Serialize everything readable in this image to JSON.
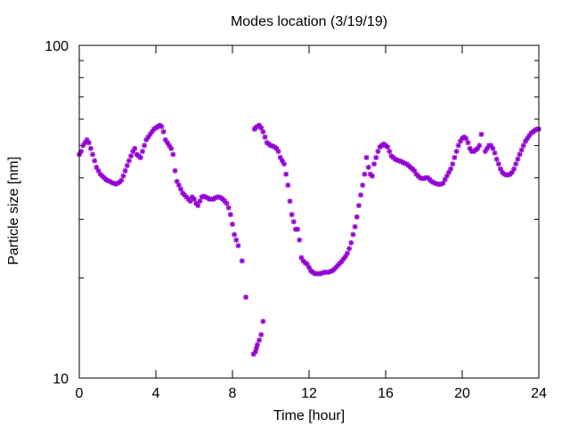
{
  "chart_data": {
    "type": "scatter",
    "title": "Modes location (3/19/19)",
    "xlabel": "Time [hour]",
    "ylabel": "Particle size [nm]",
    "xlim": [
      0,
      24
    ],
    "ylim": [
      10,
      100
    ],
    "y_scale": "log",
    "x_ticks": [
      0,
      4,
      8,
      12,
      16,
      20,
      24
    ],
    "x_tick_labels": [
      "0",
      "4",
      "8",
      "12",
      "16",
      "20",
      "24"
    ],
    "y_ticks": [
      10,
      100
    ],
    "y_tick_labels": [
      "10",
      "100"
    ],
    "grid": false,
    "legend": "none",
    "marker": "asterisk",
    "colors": {
      "series": "#9400d3",
      "axis": "#000000",
      "background": "#ffffff"
    },
    "series": [
      {
        "points": [
          [
            0.0,
            47
          ],
          [
            0.1,
            48
          ],
          [
            0.2,
            50
          ],
          [
            0.3,
            51
          ],
          [
            0.4,
            52
          ],
          [
            0.5,
            51
          ],
          [
            0.6,
            49
          ],
          [
            0.7,
            47
          ],
          [
            0.8,
            45
          ],
          [
            0.9,
            43
          ],
          [
            1.0,
            42
          ],
          [
            1.1,
            41
          ],
          [
            1.2,
            40.5
          ],
          [
            1.3,
            40
          ],
          [
            1.4,
            39.5
          ],
          [
            1.5,
            39.2
          ],
          [
            1.6,
            39
          ],
          [
            1.7,
            38.7
          ],
          [
            1.8,
            38.5
          ],
          [
            1.9,
            38.3
          ],
          [
            2.0,
            38.5
          ],
          [
            2.1,
            38.8
          ],
          [
            2.2,
            39.3
          ],
          [
            2.3,
            40.5
          ],
          [
            2.4,
            42
          ],
          [
            2.5,
            43.5
          ],
          [
            2.6,
            45
          ],
          [
            2.7,
            46.5
          ],
          [
            2.8,
            48
          ],
          [
            2.9,
            49
          ],
          [
            3.0,
            47
          ],
          [
            3.1,
            46.5
          ],
          [
            3.2,
            46
          ],
          [
            3.3,
            48
          ],
          [
            3.4,
            50
          ],
          [
            3.5,
            52
          ],
          [
            3.6,
            53
          ],
          [
            3.7,
            54
          ],
          [
            3.8,
            55
          ],
          [
            3.9,
            56
          ],
          [
            4.0,
            56.5
          ],
          [
            4.1,
            57
          ],
          [
            4.2,
            57.5
          ],
          [
            4.3,
            57
          ],
          [
            4.4,
            55
          ],
          [
            4.5,
            52
          ],
          [
            4.6,
            51
          ],
          [
            4.7,
            50
          ],
          [
            4.8,
            49
          ],
          [
            4.9,
            47
          ],
          [
            5.0,
            42
          ],
          [
            5.1,
            39
          ],
          [
            5.2,
            38
          ],
          [
            5.3,
            37
          ],
          [
            5.4,
            36
          ],
          [
            5.5,
            35.5
          ],
          [
            5.6,
            35
          ],
          [
            5.7,
            34.5
          ],
          [
            5.8,
            34
          ],
          [
            5.9,
            35
          ],
          [
            6.0,
            34.5
          ],
          [
            6.1,
            33.5
          ],
          [
            6.2,
            33
          ],
          [
            6.3,
            34
          ],
          [
            6.4,
            35
          ],
          [
            6.5,
            35.2
          ],
          [
            6.6,
            35
          ],
          [
            6.7,
            34.8
          ],
          [
            6.8,
            34.5
          ],
          [
            6.9,
            34.5
          ],
          [
            7.0,
            34.5
          ],
          [
            7.1,
            34.8
          ],
          [
            7.2,
            35
          ],
          [
            7.3,
            35
          ],
          [
            7.4,
            34.8
          ],
          [
            7.5,
            34.5
          ],
          [
            7.6,
            34
          ],
          [
            7.7,
            33.5
          ],
          [
            7.8,
            32.5
          ],
          [
            7.9,
            31
          ],
          [
            8.0,
            29
          ],
          [
            8.1,
            27
          ],
          [
            8.2,
            26
          ],
          [
            8.3,
            25
          ],
          [
            8.5,
            22.5
          ],
          [
            8.7,
            17.5
          ],
          [
            9.1,
            11.8
          ],
          [
            9.2,
            12
          ],
          [
            9.25,
            12.3
          ],
          [
            9.3,
            12.6
          ],
          [
            9.4,
            13
          ],
          [
            9.5,
            13.5
          ],
          [
            9.6,
            14.8
          ],
          [
            9.15,
            56
          ],
          [
            9.2,
            56.5
          ],
          [
            9.3,
            57
          ],
          [
            9.4,
            57.5
          ],
          [
            9.5,
            56.5
          ],
          [
            9.6,
            55
          ],
          [
            9.7,
            53
          ],
          [
            9.8,
            51
          ],
          [
            9.9,
            50.5
          ],
          [
            10.0,
            50
          ],
          [
            10.1,
            49.8
          ],
          [
            10.2,
            49.5
          ],
          [
            10.3,
            49
          ],
          [
            10.4,
            48
          ],
          [
            10.5,
            46
          ],
          [
            10.6,
            45
          ],
          [
            10.7,
            44
          ],
          [
            10.8,
            41
          ],
          [
            10.9,
            38
          ],
          [
            11.0,
            34
          ],
          [
            11.1,
            31
          ],
          [
            11.2,
            29.5
          ],
          [
            11.3,
            28
          ],
          [
            11.4,
            28
          ],
          [
            11.5,
            26
          ],
          [
            11.6,
            23
          ],
          [
            11.7,
            22.5
          ],
          [
            11.8,
            22.2
          ],
          [
            11.9,
            22
          ],
          [
            12.0,
            21.5
          ],
          [
            12.1,
            21
          ],
          [
            12.2,
            20.8
          ],
          [
            12.3,
            20.6
          ],
          [
            12.4,
            20.6
          ],
          [
            12.5,
            20.6
          ],
          [
            12.6,
            20.6
          ],
          [
            12.7,
            20.7
          ],
          [
            12.8,
            20.8
          ],
          [
            12.9,
            20.8
          ],
          [
            13.0,
            20.8
          ],
          [
            13.1,
            20.9
          ],
          [
            13.2,
            21
          ],
          [
            13.3,
            21.2
          ],
          [
            13.4,
            21.5
          ],
          [
            13.5,
            21.8
          ],
          [
            13.6,
            22.1
          ],
          [
            13.7,
            22.4
          ],
          [
            13.8,
            22.8
          ],
          [
            13.9,
            23.2
          ],
          [
            14.0,
            23.7
          ],
          [
            14.1,
            24.5
          ],
          [
            14.2,
            25.5
          ],
          [
            14.3,
            27
          ],
          [
            14.4,
            28.5
          ],
          [
            14.5,
            30.5
          ],
          [
            14.6,
            33
          ],
          [
            14.7,
            35.5
          ],
          [
            14.8,
            38
          ],
          [
            14.9,
            41
          ],
          [
            15.0,
            46
          ],
          [
            15.1,
            43
          ],
          [
            15.2,
            41
          ],
          [
            15.3,
            40.5
          ],
          [
            15.4,
            44
          ],
          [
            15.5,
            46
          ],
          [
            15.6,
            48
          ],
          [
            15.7,
            49.5
          ],
          [
            15.8,
            50
          ],
          [
            15.9,
            50.5
          ],
          [
            16.0,
            50
          ],
          [
            16.1,
            49.5
          ],
          [
            16.2,
            48
          ],
          [
            16.3,
            46.5
          ],
          [
            16.4,
            46
          ],
          [
            16.5,
            45.5
          ],
          [
            16.6,
            45.2
          ],
          [
            16.7,
            45
          ],
          [
            16.8,
            44.8
          ],
          [
            16.9,
            44.5
          ],
          [
            17.0,
            44.2
          ],
          [
            17.1,
            44
          ],
          [
            17.2,
            43.5
          ],
          [
            17.3,
            43
          ],
          [
            17.4,
            42.5
          ],
          [
            17.5,
            42
          ],
          [
            17.6,
            41
          ],
          [
            17.7,
            40.5
          ],
          [
            17.8,
            40
          ],
          [
            17.9,
            39.8
          ],
          [
            18.0,
            39.8
          ],
          [
            18.1,
            40
          ],
          [
            18.2,
            40
          ],
          [
            18.3,
            39.5
          ],
          [
            18.4,
            39
          ],
          [
            18.5,
            38.7
          ],
          [
            18.6,
            38.5
          ],
          [
            18.7,
            38.3
          ],
          [
            18.8,
            38.2
          ],
          [
            18.9,
            38.3
          ],
          [
            19.0,
            38.5
          ],
          [
            19.1,
            39.5
          ],
          [
            19.2,
            40.5
          ],
          [
            19.3,
            41.5
          ],
          [
            19.4,
            42.5
          ],
          [
            19.5,
            44
          ],
          [
            19.6,
            46
          ],
          [
            19.7,
            48
          ],
          [
            19.8,
            50
          ],
          [
            19.9,
            51.5
          ],
          [
            20.0,
            52.5
          ],
          [
            20.1,
            53
          ],
          [
            20.2,
            52.5
          ],
          [
            20.3,
            51
          ],
          [
            20.4,
            49
          ],
          [
            20.5,
            48
          ],
          [
            20.6,
            48
          ],
          [
            20.7,
            48.5
          ],
          [
            20.8,
            49
          ],
          [
            20.9,
            50
          ],
          [
            21.0,
            54
          ],
          [
            21.2,
            48
          ],
          [
            21.3,
            49
          ],
          [
            21.4,
            50
          ],
          [
            21.5,
            50
          ],
          [
            21.6,
            49
          ],
          [
            21.7,
            47.5
          ],
          [
            21.8,
            45.5
          ],
          [
            21.9,
            44
          ],
          [
            22.0,
            42.5
          ],
          [
            22.1,
            41.5
          ],
          [
            22.2,
            41
          ],
          [
            22.3,
            40.8
          ],
          [
            22.4,
            40.8
          ],
          [
            22.5,
            41
          ],
          [
            22.6,
            41.5
          ],
          [
            22.7,
            42.5
          ],
          [
            22.8,
            44
          ],
          [
            22.9,
            45.5
          ],
          [
            23.0,
            47
          ],
          [
            23.1,
            48.5
          ],
          [
            23.2,
            50
          ],
          [
            23.3,
            51.5
          ],
          [
            23.4,
            52.5
          ],
          [
            23.5,
            53.5
          ],
          [
            23.6,
            54.5
          ],
          [
            23.7,
            55
          ],
          [
            23.8,
            55.5
          ],
          [
            23.9,
            56
          ],
          [
            24.0,
            56
          ]
        ]
      }
    ]
  }
}
